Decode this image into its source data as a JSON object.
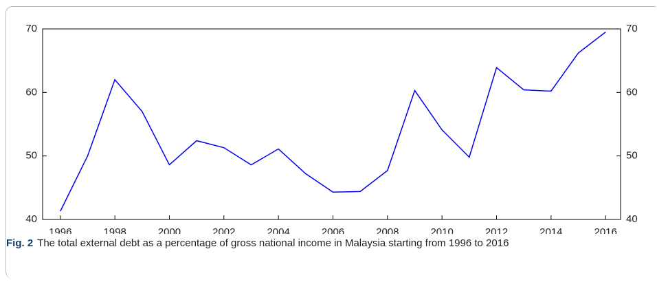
{
  "chart_data": {
    "type": "line",
    "x": [
      1996,
      1997,
      1998,
      1999,
      2000,
      2001,
      2002,
      2003,
      2004,
      2005,
      2006,
      2007,
      2008,
      2009,
      2010,
      2011,
      2012,
      2013,
      2014,
      2015,
      2016
    ],
    "values": [
      41.3,
      50.0,
      62.0,
      57.0,
      48.6,
      52.4,
      51.3,
      48.6,
      51.1,
      47.2,
      44.3,
      44.4,
      47.7,
      60.3,
      54.1,
      49.8,
      63.9,
      60.4,
      60.2,
      66.2,
      69.5
    ],
    "color": "#0000ee",
    "xlim": [
      1995.35,
      2016.55
    ],
    "xticks": [
      1996,
      1998,
      2000,
      2002,
      2004,
      2006,
      2008,
      2010,
      2012,
      2014,
      2016
    ],
    "ylim": [
      40,
      70
    ],
    "yticks": [
      40,
      50,
      60,
      70
    ]
  },
  "caption": {
    "label": "Fig. 2",
    "text": "The total external debt as a percentage of gross national income in Malaysia starting from 1996 to 2016"
  }
}
